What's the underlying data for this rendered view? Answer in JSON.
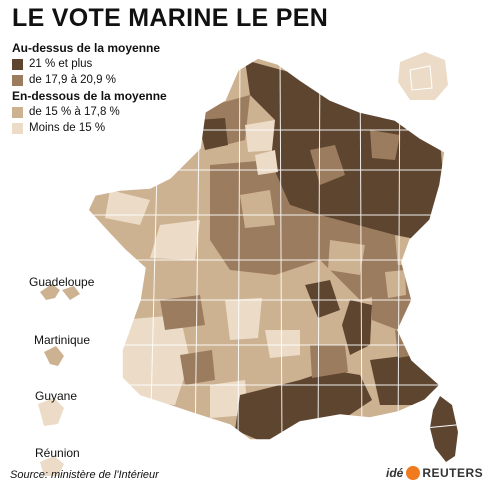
{
  "title": "LE VOTE MARINE LE PEN",
  "legend": {
    "above_heading": "Au-dessus de la moyenne",
    "below_heading": "En-dessous de la moyenne",
    "items": [
      {
        "label": "21 % et plus",
        "color": "#5e4530"
      },
      {
        "label": "de 17,9 à 20,9 %",
        "color": "#9c7c5e"
      },
      {
        "label": "de 15 % à 17,8 %",
        "color": "#cdb291"
      },
      {
        "label": "Moins de 15 %",
        "color": "#ecdcc7"
      }
    ]
  },
  "overseas": [
    "Guadeloupe",
    "Martinique",
    "Guyane",
    "Réunion"
  ],
  "source": "Source: ministère de l'Intérieur",
  "brand": {
    "ide": "idé",
    "reuters": "REUTERS"
  },
  "colors": {
    "border": "#ffffff",
    "text": "#111111"
  }
}
